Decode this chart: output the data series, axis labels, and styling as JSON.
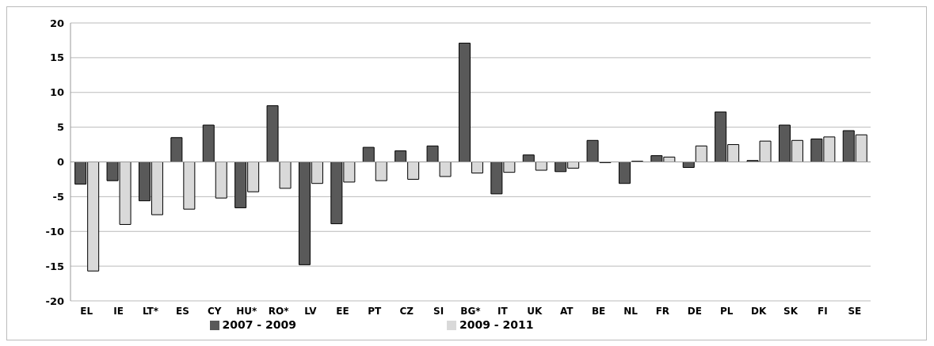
{
  "chart_data": {
    "type": "bar",
    "categories": [
      "EL",
      "IE",
      "LT*",
      "ES",
      "CY",
      "HU*",
      "RO*",
      "LV",
      "EE",
      "PT",
      "CZ",
      "SI",
      "BG*",
      "IT",
      "UK",
      "AT",
      "BE",
      "NL",
      "FR",
      "DE",
      "PL",
      "DK",
      "SK",
      "FI",
      "SE"
    ],
    "series": [
      {
        "name": "2007 - 2009",
        "color": "#595959",
        "values": [
          -3.2,
          -2.7,
          -5.6,
          3.5,
          5.3,
          -6.6,
          8.1,
          -14.8,
          -8.9,
          2.1,
          1.6,
          2.3,
          17.1,
          -4.6,
          1.0,
          -1.4,
          3.1,
          -3.1,
          0.9,
          -0.8,
          7.2,
          0.2,
          5.3,
          3.3,
          4.5
        ]
      },
      {
        "name": "2009 - 2011",
        "color": "#d9d9d9",
        "values": [
          -15.7,
          -9.0,
          -7.6,
          -6.8,
          -5.2,
          -4.3,
          -3.8,
          -3.1,
          -2.9,
          -2.7,
          -2.5,
          -2.1,
          -1.6,
          -1.5,
          -1.2,
          -0.9,
          -0.1,
          0.1,
          0.7,
          2.3,
          2.5,
          3.0,
          3.1,
          3.6,
          3.9
        ]
      }
    ],
    "ylim": [
      -20,
      20
    ],
    "yticks": [
      -20,
      -15,
      -10,
      -5,
      0,
      5,
      10,
      15,
      20
    ],
    "grid": "y",
    "legend": "bottom"
  }
}
